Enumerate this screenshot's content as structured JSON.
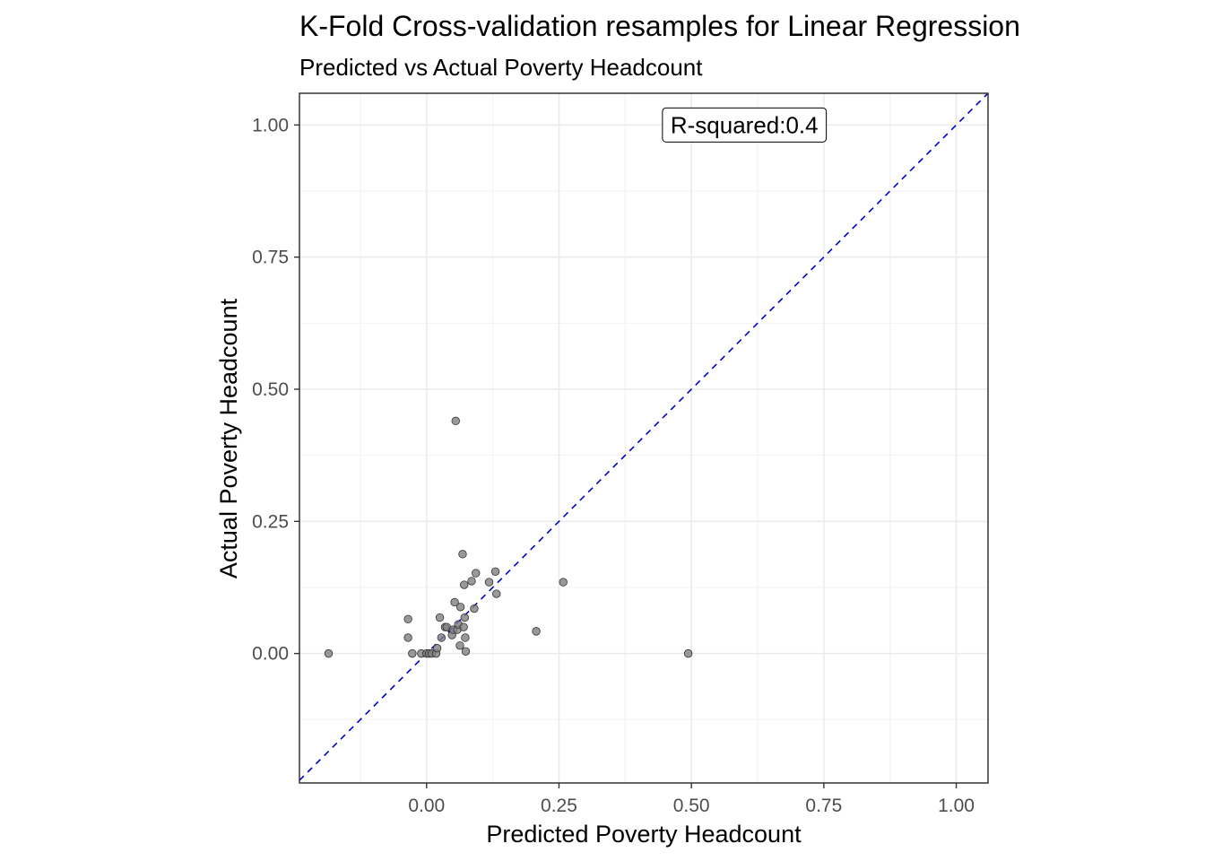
{
  "chart_data": {
    "type": "scatter",
    "title": "K-Fold Cross-validation resamples for Linear Regression",
    "subtitle": "Predicted vs Actual Poverty Headcount",
    "xlabel": "Predicted Poverty Headcount",
    "ylabel": "Actual Poverty Headcount",
    "xlim": [
      -0.24,
      1.06
    ],
    "ylim": [
      -0.245,
      1.06
    ],
    "x_ticks": [
      "0.00",
      "0.25",
      "0.50",
      "0.75",
      "1.00"
    ],
    "x_tick_values": [
      0,
      0.25,
      0.5,
      0.75,
      1.0
    ],
    "y_ticks": [
      "0.00",
      "0.25",
      "0.50",
      "0.75",
      "1.00"
    ],
    "y_tick_values": [
      0,
      0.25,
      0.5,
      0.75,
      1.0
    ],
    "grid": true,
    "reference_line": {
      "type": "y=x",
      "style": "dashed",
      "color": "#0000cc"
    },
    "annotation": {
      "text": "R-squared:0.4",
      "x": 0.6,
      "y": 1.0
    },
    "point_color": "#808080",
    "points": [
      {
        "x": -0.185,
        "y": 0.0
      },
      {
        "x": -0.035,
        "y": 0.065
      },
      {
        "x": -0.035,
        "y": 0.03
      },
      {
        "x": -0.027,
        "y": 0.0
      },
      {
        "x": -0.01,
        "y": 0.0
      },
      {
        "x": 0.0,
        "y": 0.0
      },
      {
        "x": 0.005,
        "y": 0.0
      },
      {
        "x": 0.01,
        "y": 0.0
      },
      {
        "x": 0.018,
        "y": 0.0
      },
      {
        "x": 0.02,
        "y": 0.01
      },
      {
        "x": 0.025,
        "y": 0.068
      },
      {
        "x": 0.028,
        "y": 0.03
      },
      {
        "x": 0.035,
        "y": 0.05
      },
      {
        "x": 0.038,
        "y": 0.05
      },
      {
        "x": 0.048,
        "y": 0.035
      },
      {
        "x": 0.05,
        "y": 0.045
      },
      {
        "x": 0.053,
        "y": 0.097
      },
      {
        "x": 0.055,
        "y": 0.44
      },
      {
        "x": 0.058,
        "y": 0.045
      },
      {
        "x": 0.06,
        "y": 0.055
      },
      {
        "x": 0.063,
        "y": 0.015
      },
      {
        "x": 0.064,
        "y": 0.088
      },
      {
        "x": 0.068,
        "y": 0.188
      },
      {
        "x": 0.07,
        "y": 0.05
      },
      {
        "x": 0.071,
        "y": 0.13
      },
      {
        "x": 0.072,
        "y": 0.068
      },
      {
        "x": 0.073,
        "y": 0.03
      },
      {
        "x": 0.074,
        "y": 0.004
      },
      {
        "x": 0.085,
        "y": 0.137
      },
      {
        "x": 0.09,
        "y": 0.085
      },
      {
        "x": 0.093,
        "y": 0.152
      },
      {
        "x": 0.118,
        "y": 0.135
      },
      {
        "x": 0.13,
        "y": 0.155
      },
      {
        "x": 0.132,
        "y": 0.113
      },
      {
        "x": 0.207,
        "y": 0.042
      },
      {
        "x": 0.258,
        "y": 0.135
      },
      {
        "x": 0.494,
        "y": 0.0
      }
    ]
  }
}
